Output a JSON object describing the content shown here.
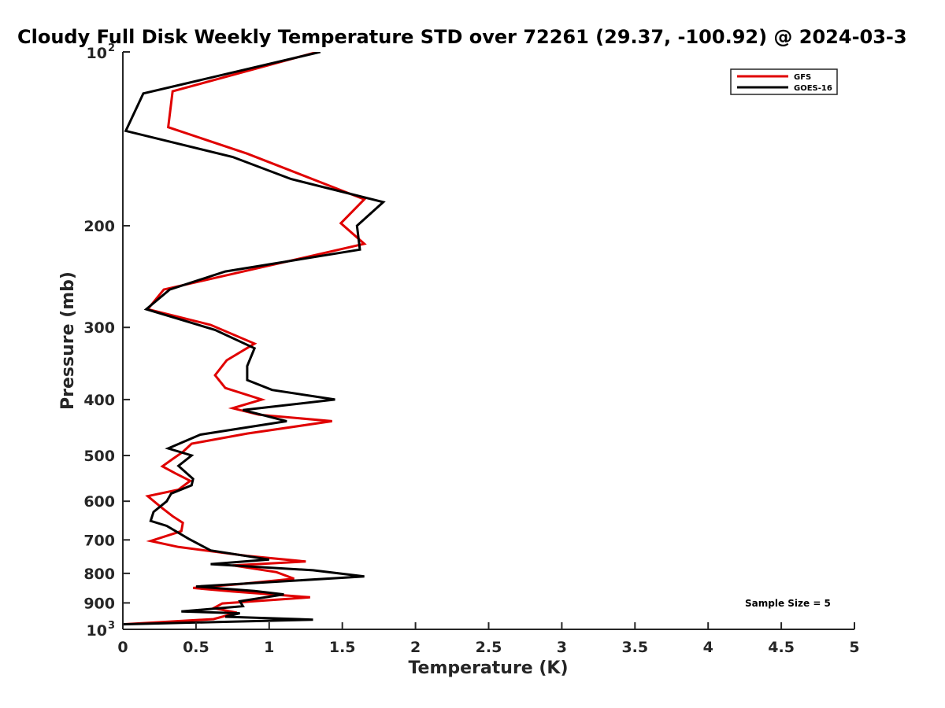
{
  "chart_data": {
    "type": "line",
    "title": "Cloudy Full Disk Weekly Temperature STD over 72261 (29.37, -100.92) @ 2024-03-3",
    "xlabel": "Temperature (K)",
    "ylabel": "Pressure (mb)",
    "xlim": [
      0,
      5
    ],
    "ylim": [
      1000,
      100
    ],
    "yscale": "log",
    "y_reversed": true,
    "grid": false,
    "legend_position": "top-right",
    "x_ticks": [
      "0",
      "0.5",
      "1",
      "1.5",
      "2",
      "2.5",
      "3",
      "3.5",
      "4",
      "4.5",
      "5"
    ],
    "x_tick_values": [
      0,
      0.5,
      1,
      1.5,
      2,
      2.5,
      3,
      3.5,
      4,
      4.5,
      5
    ],
    "y_ticks": [
      {
        "value": 100,
        "base": "10",
        "exp": "2"
      },
      {
        "value": 200,
        "label": "200"
      },
      {
        "value": 300,
        "label": "300"
      },
      {
        "value": 400,
        "label": "400"
      },
      {
        "value": 500,
        "label": "500"
      },
      {
        "value": 600,
        "label": "600"
      },
      {
        "value": 700,
        "label": "700"
      },
      {
        "value": 800,
        "label": "800"
      },
      {
        "value": 900,
        "label": "900"
      },
      {
        "value": 1000,
        "base": "10",
        "exp": "3"
      }
    ],
    "annotation": "Sample Size = 5",
    "series": [
      {
        "name": "GFS",
        "color": "#e00000",
        "points": [
          [
            1.33,
            100
          ],
          [
            0.34,
            117
          ],
          [
            0.31,
            135
          ],
          [
            0.85,
            150
          ],
          [
            1.65,
            180
          ],
          [
            1.49,
            198
          ],
          [
            1.65,
            215
          ],
          [
            0.95,
            236
          ],
          [
            0.28,
            258
          ],
          [
            0.17,
            279
          ],
          [
            0.6,
            297
          ],
          [
            0.9,
            320
          ],
          [
            0.71,
            342
          ],
          [
            0.63,
            363
          ],
          [
            0.7,
            382
          ],
          [
            0.95,
            400
          ],
          [
            0.75,
            414
          ],
          [
            0.93,
            425
          ],
          [
            1.43,
            436
          ],
          [
            0.85,
            458
          ],
          [
            0.47,
            477
          ],
          [
            0.41,
            493
          ],
          [
            0.34,
            507
          ],
          [
            0.27,
            522
          ],
          [
            0.36,
            537
          ],
          [
            0.46,
            553
          ],
          [
            0.38,
            573
          ],
          [
            0.17,
            588
          ],
          [
            0.27,
            617
          ],
          [
            0.34,
            637
          ],
          [
            0.41,
            654
          ],
          [
            0.4,
            676
          ],
          [
            0.19,
            703
          ],
          [
            0.38,
            720
          ],
          [
            0.85,
            746
          ],
          [
            1.25,
            763
          ],
          [
            0.75,
            775
          ],
          [
            1.05,
            796
          ],
          [
            1.17,
            817
          ],
          [
            0.8,
            835
          ],
          [
            0.48,
            848
          ],
          [
            0.75,
            860
          ],
          [
            1.28,
            880
          ],
          [
            0.68,
            902
          ],
          [
            0.62,
            919
          ],
          [
            0.78,
            936
          ],
          [
            0.62,
            960
          ],
          [
            0.0,
            980
          ]
        ]
      },
      {
        "name": "GOES-16",
        "color": "#000000",
        "points": [
          [
            1.35,
            100
          ],
          [
            0.14,
            118
          ],
          [
            0.02,
            137
          ],
          [
            0.75,
            152
          ],
          [
            1.15,
            166
          ],
          [
            1.78,
            182
          ],
          [
            1.6,
            200
          ],
          [
            1.62,
            220
          ],
          [
            0.7,
            240
          ],
          [
            0.32,
            258
          ],
          [
            0.16,
            279
          ],
          [
            0.63,
            303
          ],
          [
            0.9,
            326
          ],
          [
            0.85,
            350
          ],
          [
            0.85,
            370
          ],
          [
            1.02,
            385
          ],
          [
            1.45,
            400
          ],
          [
            0.82,
            417
          ],
          [
            1.12,
            436
          ],
          [
            0.53,
            460
          ],
          [
            0.31,
            486
          ],
          [
            0.47,
            500
          ],
          [
            0.38,
            521
          ],
          [
            0.48,
            549
          ],
          [
            0.47,
            563
          ],
          [
            0.33,
            582
          ],
          [
            0.3,
            600
          ],
          [
            0.21,
            626
          ],
          [
            0.19,
            649
          ],
          [
            0.3,
            662
          ],
          [
            0.45,
            697
          ],
          [
            0.6,
            730
          ],
          [
            1.0,
            757
          ],
          [
            0.6,
            771
          ],
          [
            1.3,
            790
          ],
          [
            1.65,
            810
          ],
          [
            0.5,
            843
          ],
          [
            0.9,
            858
          ],
          [
            1.1,
            870
          ],
          [
            0.8,
            894
          ],
          [
            0.82,
            912
          ],
          [
            0.4,
            931
          ],
          [
            0.8,
            938
          ],
          [
            0.7,
            951
          ],
          [
            1.3,
            962
          ],
          [
            0.0,
            980
          ]
        ]
      }
    ]
  }
}
